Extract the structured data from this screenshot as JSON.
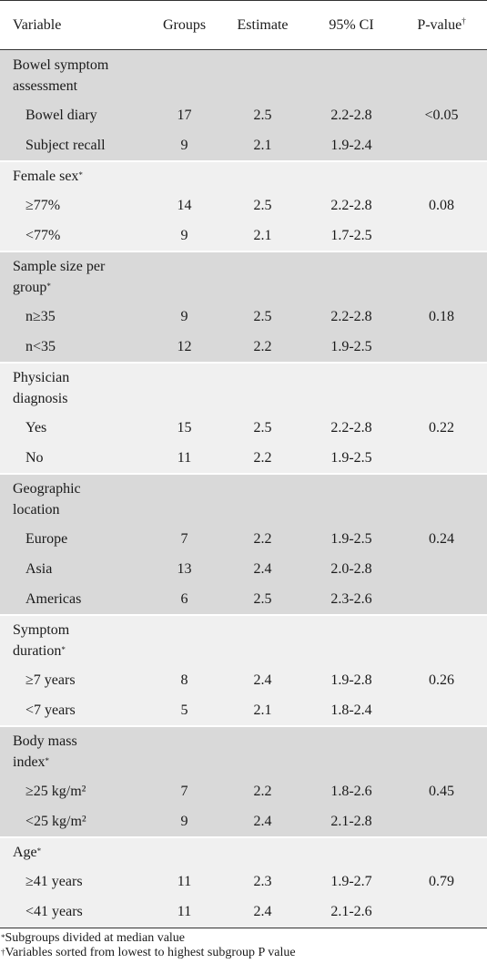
{
  "columns": {
    "variable": "Variable",
    "groups": "Groups",
    "estimate": "Estimate",
    "ci": "95% CI",
    "pvalue": "P-value",
    "pvalue_mark": "†"
  },
  "sections": [
    {
      "title": "Bowel symptom assessment",
      "title_lines": [
        "Bowel symptom",
        "assessment"
      ],
      "mark": "",
      "pvalue": "<0.05",
      "rows": [
        {
          "label": "Bowel diary",
          "groups": "17",
          "estimate": "2.5",
          "ci": "2.2-2.8"
        },
        {
          "label": "Subject recall",
          "groups": "9",
          "estimate": "2.1",
          "ci": "1.9-2.4"
        }
      ]
    },
    {
      "title": "Female sex",
      "title_lines": [
        "Female sex"
      ],
      "mark": "*",
      "pvalue": "0.08",
      "rows": [
        {
          "label": "≥77%",
          "groups": "14",
          "estimate": "2.5",
          "ci": "2.2-2.8"
        },
        {
          "label": "<77%",
          "groups": "9",
          "estimate": "2.1",
          "ci": "1.7-2.5"
        }
      ]
    },
    {
      "title": "Sample size per group",
      "title_lines": [
        "Sample size per",
        "group"
      ],
      "mark": "*",
      "pvalue": "0.18",
      "rows": [
        {
          "label": "n≥35",
          "groups": "9",
          "estimate": "2.5",
          "ci": "2.2-2.8"
        },
        {
          "label": "n<35",
          "groups": "12",
          "estimate": "2.2",
          "ci": "1.9-2.5"
        }
      ]
    },
    {
      "title": "Physician diagnosis",
      "title_lines": [
        "Physician",
        "diagnosis"
      ],
      "mark": "",
      "pvalue": "0.22",
      "rows": [
        {
          "label": "Yes",
          "groups": "15",
          "estimate": "2.5",
          "ci": "2.2-2.8"
        },
        {
          "label": "No",
          "groups": "11",
          "estimate": "2.2",
          "ci": "1.9-2.5"
        }
      ]
    },
    {
      "title": "Geographic location",
      "title_lines": [
        "Geographic",
        "location"
      ],
      "mark": "",
      "pvalue": "0.24",
      "rows": [
        {
          "label": "Europe",
          "groups": "7",
          "estimate": "2.2",
          "ci": "1.9-2.5"
        },
        {
          "label": "Asia",
          "groups": "13",
          "estimate": "2.4",
          "ci": "2.0-2.8"
        },
        {
          "label": "Americas",
          "groups": "6",
          "estimate": "2.5",
          "ci": "2.3-2.6"
        }
      ]
    },
    {
      "title": "Symptom duration",
      "title_lines": [
        "Symptom",
        "duration"
      ],
      "mark": "*",
      "pvalue": "0.26",
      "rows": [
        {
          "label": "≥7 years",
          "groups": "8",
          "estimate": "2.4",
          "ci": "1.9-2.8"
        },
        {
          "label": "<7 years",
          "groups": "5",
          "estimate": "2.1",
          "ci": "1.8-2.4"
        }
      ]
    },
    {
      "title": "Body mass index",
      "title_lines": [
        "Body mass",
        "index"
      ],
      "mark": "*",
      "pvalue": "0.45",
      "rows": [
        {
          "label": "≥25 kg/m²",
          "groups": "7",
          "estimate": "2.2",
          "ci": "1.8-2.6"
        },
        {
          "label": "<25 kg/m²",
          "groups": "9",
          "estimate": "2.4",
          "ci": "2.1-2.8"
        }
      ]
    },
    {
      "title": "Age",
      "title_lines": [
        "Age"
      ],
      "mark": "*",
      "pvalue": "0.79",
      "rows": [
        {
          "label": "≥41 years",
          "groups": "11",
          "estimate": "2.3",
          "ci": "1.9-2.7"
        },
        {
          "label": "<41 years",
          "groups": "11",
          "estimate": "2.4",
          "ci": "2.1-2.6"
        }
      ]
    }
  ],
  "footnotes": [
    {
      "mark": "*",
      "text": "Subgroups divided at median value"
    },
    {
      "mark": "†",
      "text": "Variables sorted from lowest to highest subgroup P value"
    }
  ],
  "colors": {
    "band_dark": "#d9d9d9",
    "band_light": "#f0f0f0",
    "rule": "#333333"
  }
}
